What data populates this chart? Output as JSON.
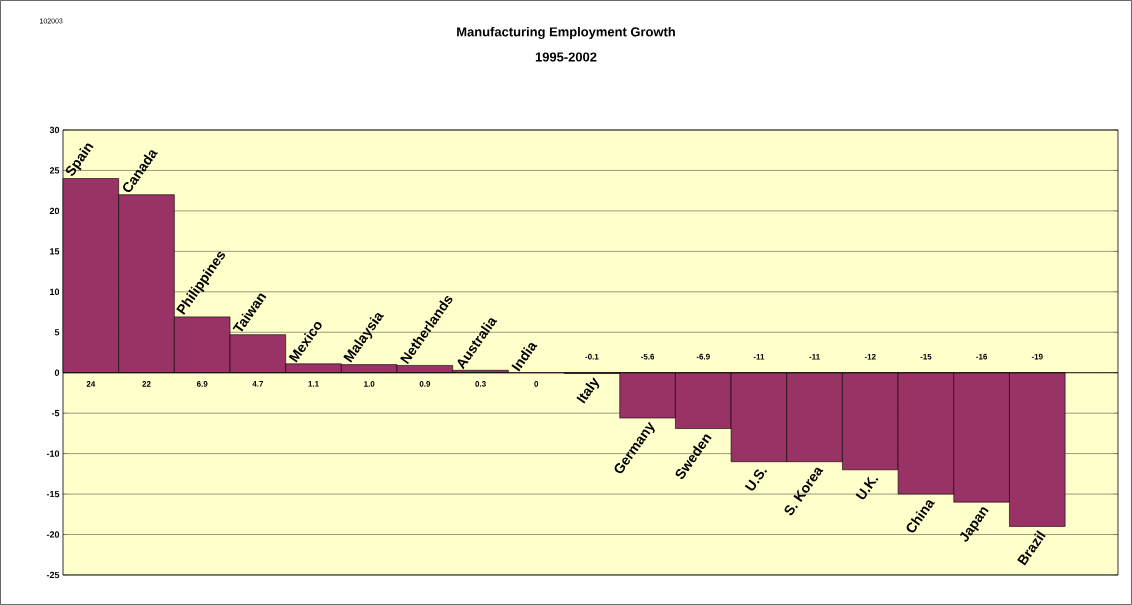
{
  "chart_data": {
    "type": "bar",
    "title": "Manufacturing Employment Growth",
    "subtitle": "1995-2002",
    "categories": [
      "Spain",
      "Canada",
      "Philippines",
      "Taiwan",
      "Mexico",
      "Malaysia",
      "Netherlands",
      "Australia",
      "India",
      "Italy",
      "Germany",
      "Sweden",
      "U.S.",
      "S. Korea",
      "U.K.",
      "China",
      "Japan",
      "Brazil"
    ],
    "values": [
      24,
      22,
      6.9,
      4.7,
      1.1,
      1.0,
      0.9,
      0.3,
      0,
      -0.1,
      -5.6,
      -6.9,
      -11,
      -11,
      -12,
      -15,
      -16,
      -19
    ],
    "color": "#993366",
    "value_labels": [
      "24",
      "22",
      "6.9",
      "4.7",
      "1.1",
      "1.0",
      "0.9",
      "0.3",
      "0",
      "-0.1",
      "-5.6",
      "-6.9",
      "-11",
      "-11",
      "-12",
      "-15",
      "-16",
      "-19"
    ],
    "ylim": [
      -25,
      30
    ],
    "yticks": [
      -25,
      -20,
      -15,
      -10,
      -5,
      0,
      5,
      10,
      15,
      20,
      25,
      30
    ],
    "grid": "y",
    "annotations": [
      "102003"
    ]
  }
}
